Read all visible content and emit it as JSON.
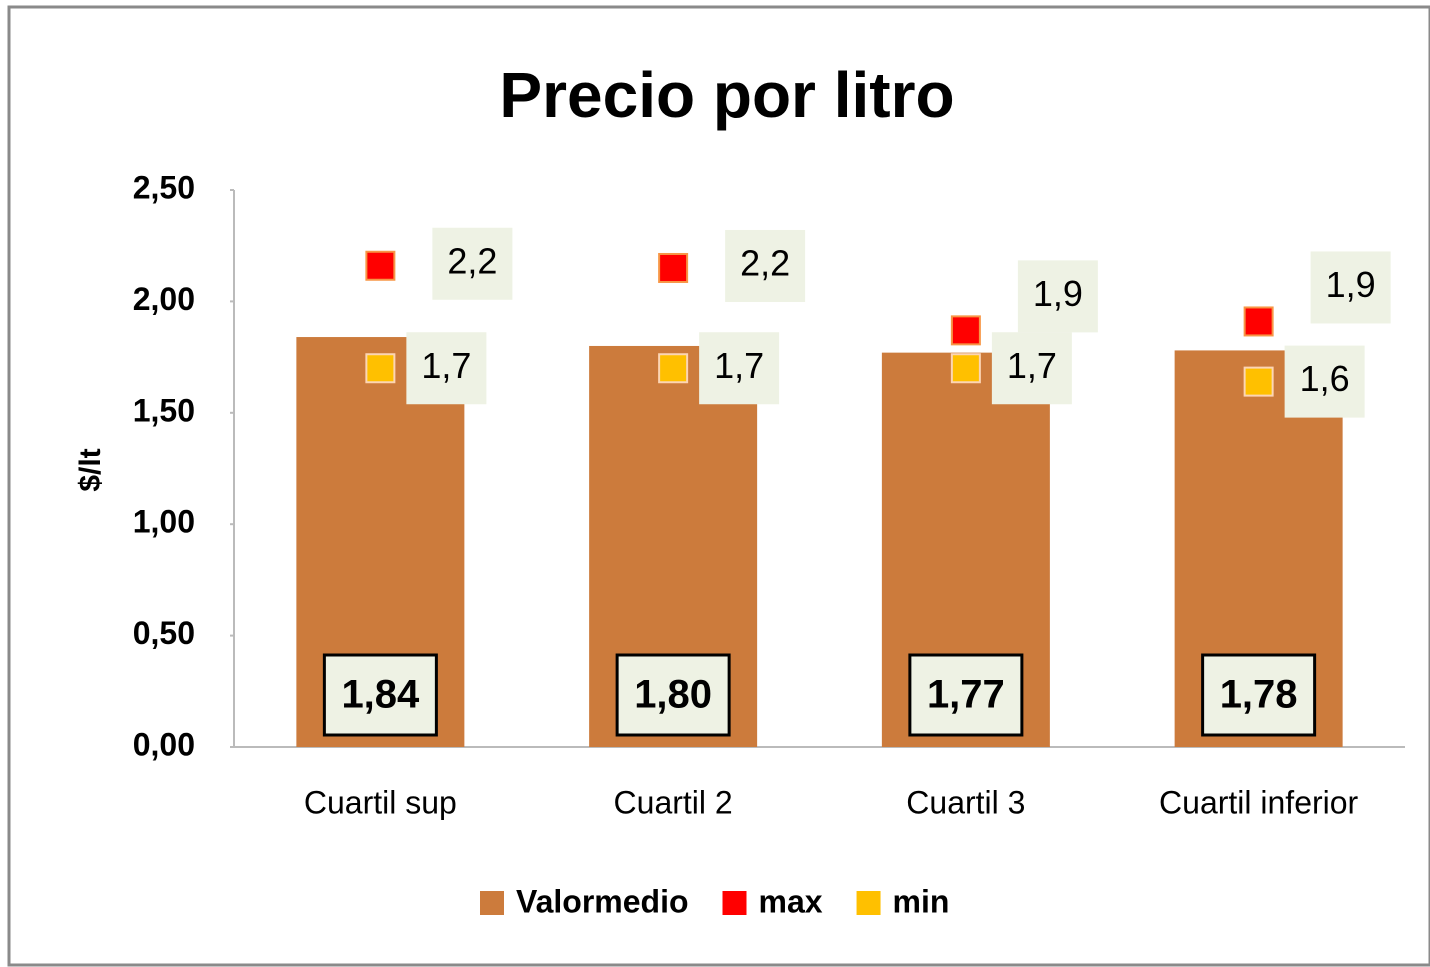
{
  "chart_data": {
    "type": "bar",
    "title": "Precio por litro",
    "y_label": "$/lt",
    "categories": [
      "Cuartil sup",
      "Cuartil 2",
      "Cuartil 3",
      "Cuartil inferior"
    ],
    "series": [
      {
        "name": "Valormedio",
        "type": "bar",
        "color": "#cc7b3c",
        "values": [
          1.84,
          1.8,
          1.77,
          1.78
        ],
        "value_labels": [
          "1,84",
          "1,80",
          "1,77",
          "1,78"
        ]
      },
      {
        "name": "max",
        "type": "scatter",
        "color": "#ff0000",
        "values": [
          2.16,
          2.15,
          1.87,
          1.91
        ],
        "value_labels": [
          "2,2",
          "2,2",
          "1,9",
          "1,9"
        ]
      },
      {
        "name": "min",
        "type": "scatter",
        "color": "#ffc000",
        "values": [
          1.7,
          1.7,
          1.7,
          1.64
        ],
        "value_labels": [
          "1,7",
          "1,7",
          "1,7",
          "1,6"
        ]
      }
    ],
    "ylim": [
      0,
      2.5
    ],
    "yticks": [
      {
        "value": 0,
        "label": "0,00"
      },
      {
        "value": 0.5,
        "label": "0,50"
      },
      {
        "value": 1,
        "label": "1,00"
      },
      {
        "value": 1.5,
        "label": "1,50"
      },
      {
        "value": 2,
        "label": "2,00"
      },
      {
        "value": 2.5,
        "label": "2,50"
      }
    ],
    "legend": "bottom"
  }
}
